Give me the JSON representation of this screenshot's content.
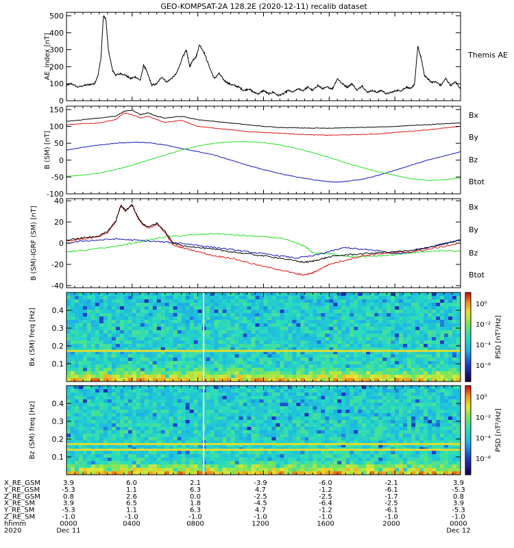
{
  "title": "GEO-KOMPSAT-2A 128.2E (2020-12-11) recalib dataset",
  "colors": {
    "black": "#000000",
    "red": "#dd1111",
    "blue": "#1111bb",
    "green": "#22dd22",
    "white": "#ffffff",
    "spec_base": "#22ddbb",
    "spec_line": "#dddd33"
  },
  "chart_data": [
    {
      "type": "line",
      "panel": "ae",
      "ylabel": "AE_index [nT]",
      "ylim": [
        0,
        520
      ],
      "yticks": [
        0,
        100,
        200,
        300,
        400,
        500
      ],
      "xlim_hours": [
        0,
        24
      ],
      "legend": [
        {
          "label": "Themis AE",
          "color": "#000000"
        }
      ],
      "series": [
        {
          "name": "AE",
          "color": "#000000",
          "x": [
            0,
            0.3,
            0.7,
            1.1,
            1.4,
            1.7,
            1.9,
            2.1,
            2.25,
            2.4,
            2.55,
            2.8,
            3.0,
            3.3,
            3.6,
            3.9,
            4.2,
            4.5,
            4.7,
            4.9,
            5.2,
            5.5,
            5.8,
            6.1,
            6.4,
            6.7,
            6.9,
            7.1,
            7.3,
            7.5,
            7.7,
            7.9,
            8.1,
            8.4,
            8.7,
            9.0,
            9.3,
            9.6,
            9.9,
            10.2,
            10.5,
            10.8,
            11.1,
            11.4,
            11.7,
            12.0,
            12.3,
            12.6,
            12.9,
            13.2,
            13.5,
            13.8,
            14.1,
            14.4,
            14.7,
            15.0,
            15.3,
            15.6,
            15.9,
            16.2,
            16.5,
            16.8,
            17.1,
            17.4,
            17.7,
            18.0,
            18.3,
            18.6,
            18.9,
            19.2,
            19.5,
            19.8,
            20.1,
            20.4,
            20.7,
            21.0,
            21.2,
            21.4,
            21.6,
            21.8,
            22.0,
            22.2,
            22.5,
            22.8,
            23.1,
            23.4,
            23.7,
            24.0
          ],
          "y": [
            90,
            100,
            80,
            90,
            95,
            100,
            140,
            250,
            500,
            480,
            300,
            180,
            150,
            160,
            150,
            130,
            140,
            120,
            210,
            170,
            90,
            100,
            140,
            110,
            130,
            160,
            210,
            260,
            300,
            200,
            240,
            260,
            330,
            280,
            200,
            130,
            160,
            120,
            100,
            90,
            80,
            60,
            70,
            50,
            40,
            60,
            40,
            50,
            30,
            40,
            60,
            50,
            70,
            60,
            80,
            60,
            90,
            70,
            80,
            70,
            130,
            100,
            80,
            100,
            60,
            90,
            50,
            60,
            50,
            60,
            40,
            50,
            60,
            60,
            80,
            70,
            100,
            320,
            250,
            150,
            130,
            110,
            110,
            90,
            130,
            90,
            110,
            70
          ]
        }
      ]
    },
    {
      "type": "line",
      "panel": "b_sm",
      "ylabel": "B (SM) [nT]",
      "ylim": [
        -100,
        160
      ],
      "yticks": [
        -100,
        -50,
        0,
        50,
        100,
        150
      ],
      "xlim_hours": [
        0,
        24
      ],
      "legend": [
        {
          "label": "Bx",
          "color": "#1111bb"
        },
        {
          "label": "By",
          "color": "#22dd22"
        },
        {
          "label": "Bz",
          "color": "#dd1111"
        },
        {
          "label": "Btot",
          "color": "#000000"
        }
      ],
      "series": [
        {
          "name": "Btot",
          "color": "#000000",
          "x": [
            0,
            1,
            2,
            3,
            3.5,
            4,
            4.5,
            5,
            5.5,
            6,
            7,
            8,
            9,
            10,
            11,
            12,
            13,
            14,
            15,
            16,
            17,
            18,
            19,
            20,
            21,
            22,
            23,
            24
          ],
          "y": [
            115,
            120,
            125,
            130,
            145,
            148,
            135,
            140,
            130,
            125,
            130,
            120,
            115,
            110,
            105,
            100,
            97,
            96,
            95,
            95,
            96,
            97,
            98,
            100,
            103,
            105,
            108,
            110
          ]
        },
        {
          "name": "Bz",
          "color": "#dd1111",
          "x": [
            0,
            1,
            2,
            3,
            3.5,
            4,
            4.5,
            5,
            5.5,
            6,
            7,
            8,
            9,
            10,
            11,
            12,
            13,
            14,
            15,
            16,
            17,
            18,
            19,
            20,
            21,
            22,
            23,
            24
          ],
          "y": [
            105,
            108,
            110,
            120,
            140,
            135,
            125,
            130,
            120,
            112,
            118,
            100,
            95,
            90,
            85,
            82,
            80,
            77,
            75,
            74,
            75,
            76,
            78,
            82,
            86,
            90,
            95,
            100
          ]
        },
        {
          "name": "Bx",
          "color": "#1111bb",
          "x": [
            0,
            1,
            2,
            3,
            4,
            5,
            6,
            7,
            8,
            9,
            10,
            11,
            12,
            13,
            14,
            15,
            16,
            16.5,
            17,
            18,
            19,
            20,
            21,
            22,
            23,
            24
          ],
          "y": [
            30,
            38,
            45,
            50,
            53,
            52,
            45,
            35,
            25,
            15,
            0,
            -15,
            -28,
            -40,
            -50,
            -58,
            -64,
            -65,
            -63,
            -57,
            -45,
            -30,
            -15,
            0,
            12,
            25
          ]
        },
        {
          "name": "By",
          "color": "#22dd22",
          "x": [
            0,
            1,
            2,
            3,
            4,
            5,
            6,
            7,
            8,
            9,
            10,
            11,
            12,
            13,
            14,
            15,
            16,
            17,
            18,
            19,
            20,
            21,
            22,
            23,
            24
          ],
          "y": [
            -48,
            -44,
            -38,
            -28,
            -15,
            0,
            15,
            30,
            42,
            50,
            54,
            55,
            52,
            45,
            35,
            22,
            8,
            -8,
            -22,
            -35,
            -45,
            -55,
            -60,
            -58,
            -53
          ]
        }
      ]
    },
    {
      "type": "line",
      "panel": "b_minus_igrf",
      "ylabel": "B (SM)-IGRF (SM) [nT]",
      "ylim": [
        -42,
        42
      ],
      "yticks": [
        -40,
        -20,
        0,
        20,
        40
      ],
      "xlim_hours": [
        0,
        24
      ],
      "legend": [
        {
          "label": "Bx",
          "color": "#1111bb"
        },
        {
          "label": "By",
          "color": "#22dd22"
        },
        {
          "label": "Bz",
          "color": "#dd1111"
        },
        {
          "label": "Btot",
          "color": "#000000"
        }
      ],
      "series": [
        {
          "name": "By",
          "color": "#22dd22",
          "x": [
            0,
            1,
            2,
            3,
            4,
            5,
            6,
            7,
            8,
            9,
            10,
            11,
            12,
            13,
            14,
            14.5,
            15,
            16,
            17,
            18,
            19,
            20,
            21,
            22,
            23,
            24
          ],
          "y": [
            -8,
            -7,
            -5,
            -3,
            0,
            3,
            6,
            7,
            8,
            9,
            8,
            7,
            6,
            5,
            0,
            -3,
            -9,
            -10,
            -12,
            -13,
            -12,
            -11,
            -9,
            -8,
            -7,
            -8
          ]
        },
        {
          "name": "Bx",
          "color": "#1111bb",
          "x": [
            0,
            1,
            2,
            3,
            4,
            5,
            6,
            7,
            8,
            9,
            10,
            11,
            12,
            13,
            14,
            15,
            16,
            17,
            18,
            19,
            20,
            21,
            22,
            23,
            24
          ],
          "y": [
            0,
            2,
            3,
            4,
            3,
            2,
            1,
            0,
            -2,
            -4,
            -6,
            -8,
            -10,
            -12,
            -14,
            -12,
            -8,
            -4,
            -6,
            -7,
            -10,
            -8,
            -4,
            0,
            3
          ]
        },
        {
          "name": "Bz",
          "color": "#dd1111",
          "x": [
            0,
            1,
            2,
            2.5,
            3,
            3.3,
            3.6,
            4,
            4.3,
            4.6,
            5,
            5.5,
            6,
            6.5,
            7,
            8,
            9,
            10,
            11,
            12,
            13,
            14,
            14.5,
            15,
            15.5,
            16,
            17,
            18,
            19,
            20,
            21,
            22,
            23,
            24
          ],
          "y": [
            2,
            4,
            6,
            10,
            20,
            36,
            30,
            37,
            25,
            18,
            14,
            18,
            10,
            -2,
            -4,
            -8,
            -12,
            -14,
            -18,
            -22,
            -25,
            -29,
            -30,
            -28,
            -24,
            -20,
            -16,
            -12,
            -10,
            -9,
            -8,
            -6,
            -3,
            0
          ]
        },
        {
          "name": "Btot",
          "color": "#000000",
          "x": [
            0,
            1,
            2,
            2.5,
            3,
            3.3,
            3.6,
            4,
            4.3,
            4.6,
            5,
            5.5,
            6,
            6.5,
            7,
            8,
            9,
            10,
            11,
            12,
            13,
            14,
            14.5,
            15,
            15.5,
            16,
            17,
            18,
            19,
            20,
            21,
            22,
            23,
            24
          ],
          "y": [
            3,
            5,
            7,
            11,
            21,
            35,
            31,
            36,
            26,
            19,
            15,
            19,
            11,
            0,
            -2,
            -4,
            -6,
            -8,
            -10,
            -12,
            -14,
            -17,
            -18,
            -17,
            -15,
            -13,
            -11,
            -10,
            -9,
            -8,
            -7,
            -4,
            -1,
            3
          ]
        }
      ]
    },
    {
      "type": "heatmap",
      "panel": "spec_bx",
      "ylabel": "Bx (SM) freq [Hz]",
      "ylim": [
        0,
        0.5
      ],
      "yticks": [
        0.1,
        0.2,
        0.3,
        0.4
      ],
      "xlim_hours": [
        0,
        24
      ],
      "persistent_line_hz": [
        0.172
      ],
      "data_gap_hour": 8.35,
      "colorbar": {
        "label": "PSD [nT²/Hz]",
        "ticks": [
          "10⁰",
          "10⁻²",
          "10⁻⁴",
          "10⁻⁶"
        ]
      }
    },
    {
      "type": "heatmap",
      "panel": "spec_bz",
      "ylabel": "Bz (SM) freq [Hz]",
      "ylim": [
        0,
        0.5
      ],
      "yticks": [
        0.1,
        0.2,
        0.3,
        0.4
      ],
      "xlim_hours": [
        0,
        24
      ],
      "persistent_line_hz": [
        0.172,
        0.14
      ],
      "data_gap_hour": 8.35,
      "colorbar": {
        "label": "PSD [nT²/Hz]",
        "ticks": [
          "10⁰",
          "10⁻²",
          "10⁻⁴",
          "10⁻⁶"
        ]
      }
    }
  ],
  "ephemeris": {
    "row_labels": [
      "X_RE_GSM",
      "Y_RE_GSM",
      "Z_RE_GSM",
      "X_RE_SM",
      "Y_RE_SM",
      "Z_RE_SM",
      "hhmm",
      "2020"
    ],
    "columns": [
      {
        "vals": [
          "3.9",
          "-5.3",
          "0.8",
          "3.9",
          "-5.3",
          "-1.0",
          "0000",
          "Dec 11"
        ]
      },
      {
        "vals": [
          "6.0",
          "1.1",
          "2.6",
          "6.5",
          "1.1",
          "-1.0",
          "0400",
          ""
        ]
      },
      {
        "vals": [
          "2.1",
          "6.3",
          "0.0",
          "1.8",
          "6.3",
          "-1.0",
          "0800",
          ""
        ]
      },
      {
        "vals": [
          "-3.9",
          "4.7",
          "-2.5",
          "-4.5",
          "4.7",
          "-1.0",
          "1200",
          ""
        ]
      },
      {
        "vals": [
          "-6.0",
          "-1.2",
          "-2.5",
          "-6.4",
          "-1.2",
          "-1.0",
          "1600",
          ""
        ]
      },
      {
        "vals": [
          "-2.1",
          "-6.1",
          "-1.7",
          "-2.5",
          "-6.1",
          "-1.0",
          "2000",
          ""
        ]
      },
      {
        "vals": [
          "3.9",
          "-5.3",
          "0.8",
          "3.9",
          "-5.3",
          "-1.0",
          "0000",
          "Dec 12"
        ]
      }
    ]
  }
}
